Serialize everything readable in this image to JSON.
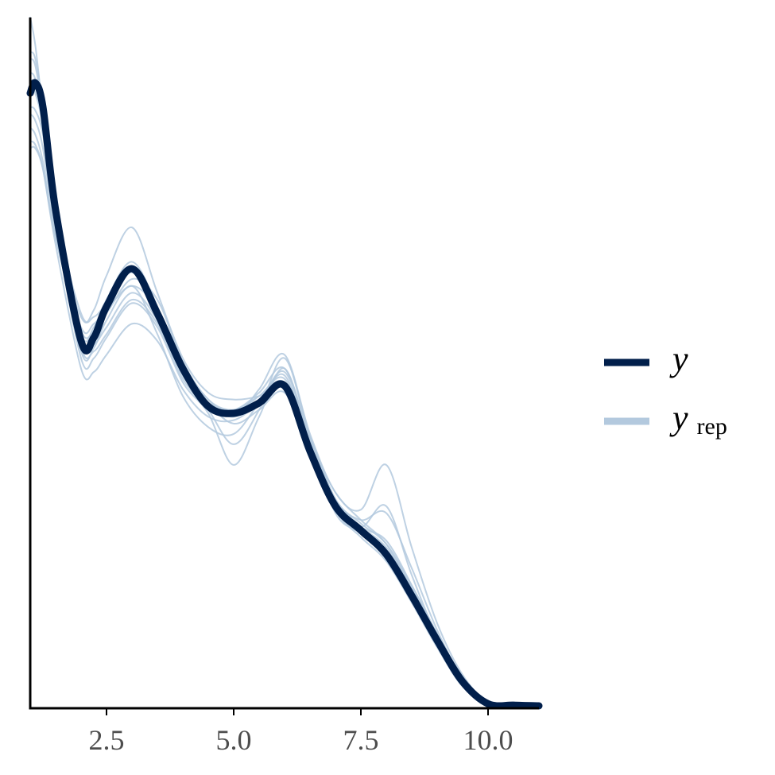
{
  "chart_data": {
    "type": "line",
    "title": "",
    "xlabel": "",
    "ylabel": "",
    "xlim": [
      1.0,
      11.0
    ],
    "ylim": [
      0,
      1.0
    ],
    "x_ticks": [
      2.5,
      5.0,
      7.5,
      10.0
    ],
    "x_tick_labels": [
      "2.5",
      "5.0",
      "7.5",
      "10.0"
    ],
    "y_axis_ticks_shown": false,
    "grid": false,
    "legend": {
      "placement": "right",
      "entries": [
        {
          "base": "y",
          "sub": ""
        },
        {
          "base": "y",
          "sub": "rep"
        }
      ]
    },
    "colors": {
      "y": "#011f4b",
      "yrep": "#b3c9de",
      "axis": "#000000"
    },
    "x": [
      1.0,
      1.1,
      1.25,
      1.5,
      2.0,
      2.25,
      2.5,
      3.0,
      3.5,
      4.0,
      4.5,
      5.0,
      5.5,
      6.0,
      6.5,
      7.0,
      7.5,
      8.0,
      8.5,
      9.0,
      9.5,
      10.0,
      10.5,
      11.0
    ],
    "series": [
      {
        "name": "y",
        "values": [
          0.89,
          0.905,
          0.87,
          0.72,
          0.53,
          0.535,
          0.58,
          0.635,
          0.57,
          0.49,
          0.435,
          0.425,
          0.44,
          0.465,
          0.37,
          0.29,
          0.255,
          0.22,
          0.16,
          0.095,
          0.035,
          0.003,
          0.001,
          0.0
        ]
      },
      {
        "values": [
          1.0,
          0.96,
          0.86,
          0.69,
          0.565,
          0.575,
          0.625,
          0.695,
          0.6,
          0.505,
          0.455,
          0.445,
          0.45,
          0.465,
          0.385,
          0.31,
          0.27,
          0.235,
          0.17,
          0.1,
          0.04,
          0.004,
          0.001,
          0.0
        ]
      },
      {
        "values": [
          0.95,
          0.94,
          0.87,
          0.7,
          0.515,
          0.52,
          0.56,
          0.61,
          0.54,
          0.45,
          0.405,
          0.395,
          0.44,
          0.485,
          0.385,
          0.28,
          0.25,
          0.215,
          0.155,
          0.09,
          0.03,
          0.003,
          0.001,
          0.0
        ]
      },
      {
        "values": [
          0.84,
          0.83,
          0.79,
          0.68,
          0.545,
          0.545,
          0.57,
          0.62,
          0.59,
          0.5,
          0.445,
          0.43,
          0.45,
          0.47,
          0.39,
          0.3,
          0.265,
          0.235,
          0.175,
          0.105,
          0.04,
          0.004,
          0.001,
          0.0
        ]
      },
      {
        "values": [
          0.82,
          0.815,
          0.78,
          0.67,
          0.49,
          0.485,
          0.51,
          0.555,
          0.53,
          0.46,
          0.42,
          0.415,
          0.44,
          0.47,
          0.39,
          0.3,
          0.26,
          0.225,
          0.16,
          0.09,
          0.03,
          0.003,
          0.001,
          0.0
        ]
      },
      {
        "values": [
          0.92,
          0.91,
          0.85,
          0.7,
          0.505,
          0.505,
          0.535,
          0.585,
          0.55,
          0.47,
          0.425,
          0.35,
          0.42,
          0.49,
          0.38,
          0.285,
          0.245,
          0.21,
          0.15,
          0.085,
          0.028,
          0.003,
          0.001,
          0.0
        ]
      },
      {
        "values": [
          0.87,
          0.865,
          0.83,
          0.71,
          0.57,
          0.565,
          0.585,
          0.63,
          0.565,
          0.495,
          0.445,
          0.42,
          0.46,
          0.51,
          0.395,
          0.31,
          0.285,
          0.35,
          0.23,
          0.12,
          0.045,
          0.005,
          0.001,
          0.0
        ]
      },
      {
        "values": [
          0.9,
          0.89,
          0.84,
          0.69,
          0.53,
          0.525,
          0.55,
          0.6,
          0.56,
          0.48,
          0.44,
          0.43,
          0.455,
          0.49,
          0.39,
          0.3,
          0.27,
          0.28,
          0.2,
          0.11,
          0.04,
          0.004,
          0.001,
          0.0
        ]
      },
      {
        "values": [
          0.81,
          0.81,
          0.78,
          0.68,
          0.55,
          0.555,
          0.575,
          0.61,
          0.575,
          0.49,
          0.44,
          0.425,
          0.45,
          0.475,
          0.385,
          0.295,
          0.26,
          0.23,
          0.17,
          0.1,
          0.037,
          0.004,
          0.001,
          0.0
        ]
      },
      {
        "values": [
          0.94,
          0.93,
          0.86,
          0.705,
          0.54,
          0.55,
          0.59,
          0.645,
          0.58,
          0.49,
          0.44,
          0.41,
          0.43,
          0.455,
          0.37,
          0.29,
          0.255,
          0.225,
          0.165,
          0.095,
          0.033,
          0.003,
          0.001,
          0.0
        ]
      },
      {
        "values": [
          0.86,
          0.85,
          0.81,
          0.69,
          0.52,
          0.515,
          0.54,
          0.59,
          0.555,
          0.475,
          0.43,
          0.38,
          0.43,
          0.505,
          0.39,
          0.295,
          0.26,
          0.29,
          0.19,
          0.1,
          0.035,
          0.004,
          0.001,
          0.0
        ]
      },
      {
        "values": [
          0.91,
          0.9,
          0.85,
          0.7,
          0.535,
          0.54,
          0.575,
          0.63,
          0.57,
          0.485,
          0.44,
          0.42,
          0.445,
          0.48,
          0.38,
          0.295,
          0.26,
          0.24,
          0.175,
          0.1,
          0.036,
          0.004,
          0.001,
          0.0
        ]
      }
    ]
  }
}
